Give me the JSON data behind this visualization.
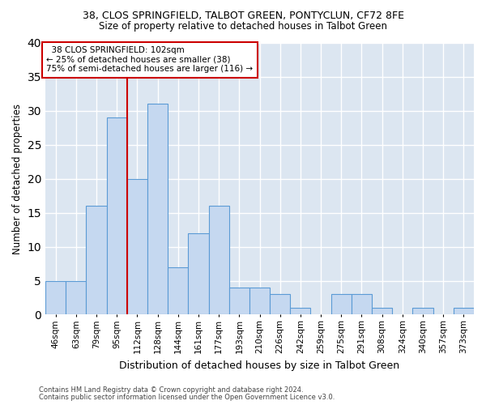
{
  "title_line1": "38, CLOS SPRINGFIELD, TALBOT GREEN, PONTYCLUN, CF72 8FE",
  "title_line2": "Size of property relative to detached houses in Talbot Green",
  "xlabel": "Distribution of detached houses by size in Talbot Green",
  "ylabel": "Number of detached properties",
  "categories": [
    "46sqm",
    "63sqm",
    "79sqm",
    "95sqm",
    "112sqm",
    "128sqm",
    "144sqm",
    "161sqm",
    "177sqm",
    "193sqm",
    "210sqm",
    "226sqm",
    "242sqm",
    "259sqm",
    "275sqm",
    "291sqm",
    "308sqm",
    "324sqm",
    "340sqm",
    "357sqm",
    "373sqm"
  ],
  "values": [
    5,
    5,
    16,
    29,
    20,
    31,
    7,
    12,
    16,
    4,
    4,
    3,
    1,
    0,
    3,
    3,
    1,
    0,
    1,
    0,
    1
  ],
  "bar_color": "#c5d8f0",
  "bar_edge_color": "#5b9bd5",
  "vline_x": 3.5,
  "vline_color": "#cc0000",
  "annotation_box_text": "  38 CLOS SPRINGFIELD: 102sqm\n← 25% of detached houses are smaller (38)\n75% of semi-detached houses are larger (116) →",
  "annotation_box_color": "#cc0000",
  "ylim": [
    0,
    40
  ],
  "yticks": [
    0,
    5,
    10,
    15,
    20,
    25,
    30,
    35,
    40
  ],
  "grid_color": "#ffffff",
  "background_color": "#dce6f1",
  "footer_line1": "Contains HM Land Registry data © Crown copyright and database right 2024.",
  "footer_line2": "Contains public sector information licensed under the Open Government Licence v3.0."
}
